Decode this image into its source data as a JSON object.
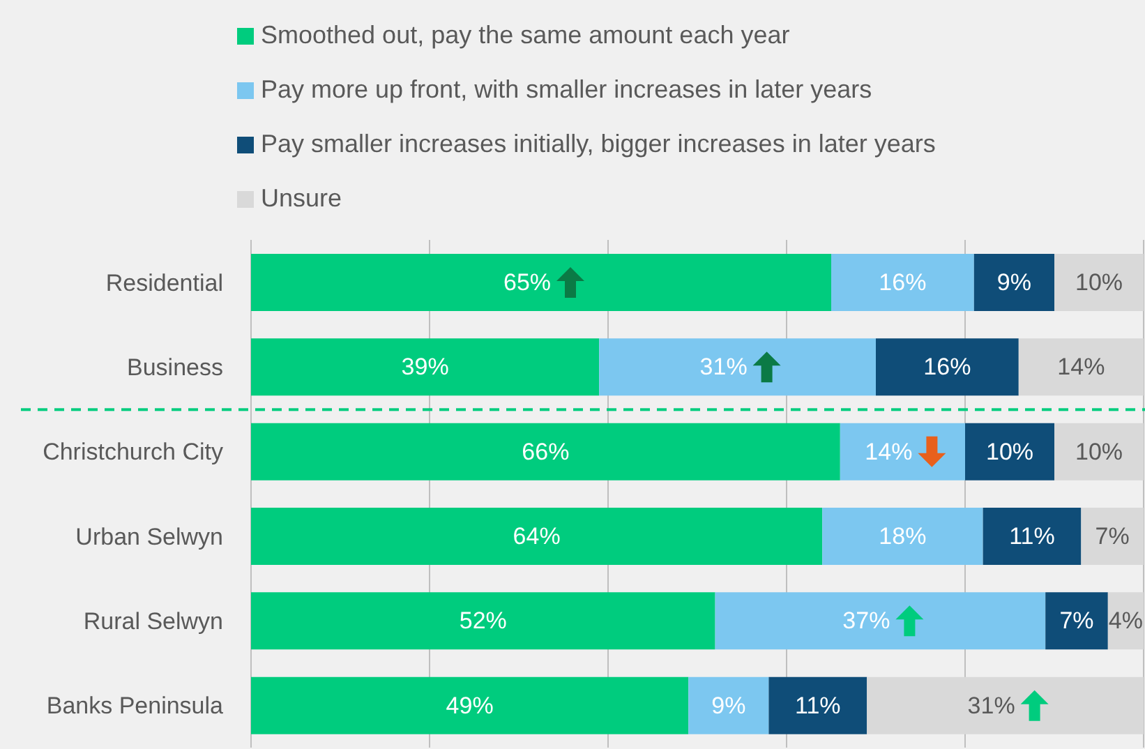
{
  "chart_data": {
    "type": "bar",
    "orientation": "horizontal",
    "stacked": true,
    "categories": [
      "Residential",
      "Business",
      "Christchurch City",
      "Urban Selwyn",
      "Rural Selwyn",
      "Banks Peninsula"
    ],
    "series": [
      {
        "name": "Smoothed out, pay the same amount each year",
        "color": "#00cc7e",
        "values": [
          65,
          39,
          66,
          64,
          52,
          49
        ],
        "value_labels": [
          "65%",
          "39%",
          "66%",
          "64%",
          "52%",
          "49%"
        ]
      },
      {
        "name": "Pay more up front, with smaller increases in later years",
        "color": "#7cc7f0",
        "values": [
          16,
          31,
          14,
          18,
          37,
          9
        ],
        "value_labels": [
          "16%",
          "31%",
          "14%",
          "18%",
          "37%",
          "9%"
        ]
      },
      {
        "name": "Pay smaller increases initially, bigger increases in later years",
        "color": "#0f4d78",
        "values": [
          9,
          16,
          10,
          11,
          7,
          11
        ],
        "value_labels": [
          "9%",
          "16%",
          "10%",
          "11%",
          "7%",
          "11%"
        ]
      },
      {
        "name": "Unsure",
        "color": "#d9d9d9",
        "values": [
          10,
          14,
          10,
          7,
          4,
          31
        ],
        "value_labels": [
          "10%",
          "14%",
          "10%",
          "7%",
          "4%",
          "31%"
        ]
      }
    ],
    "xlim": [
      0,
      100
    ],
    "tick_labels": "y",
    "grid": "x",
    "legend": "top"
  }
}
